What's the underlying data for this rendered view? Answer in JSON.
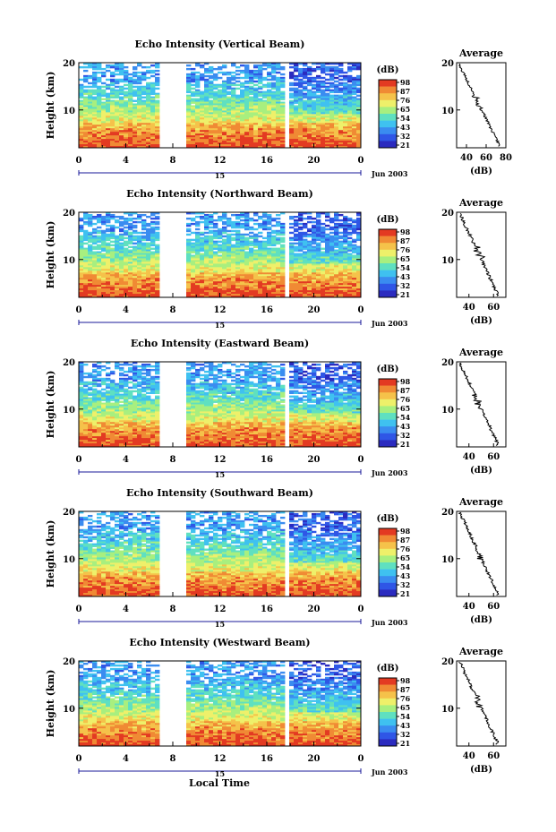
{
  "chart_data": {
    "type": "heatmap",
    "panels": [
      {
        "title": "Echo Intensity (Vertical Beam)",
        "ylabel": "Height (km)",
        "xticks": [
          "0",
          "4",
          "8",
          "12",
          "16",
          "20",
          "0"
        ],
        "yticks": [
          "10",
          "20"
        ],
        "ylim": [
          2,
          20
        ],
        "xlim": [
          0,
          24
        ],
        "day_label": "15",
        "date_label": "Jun 2003",
        "colorbar": {
          "unit": "(dB)",
          "labels": [
            "98",
            "87",
            "76",
            "65",
            "54",
            "43",
            "32",
            "21"
          ]
        },
        "profile": {
          "title": "Average",
          "xlabel": "(dB)",
          "xticks": [
            "40",
            "60",
            "80"
          ],
          "yticks": [
            "10",
            "20"
          ],
          "xlim": [
            30,
            80
          ],
          "ylim": [
            2,
            20
          ]
        }
      },
      {
        "title": "Echo Intensity (Northward Beam)",
        "ylabel": "Height (km)",
        "xticks": [
          "0",
          "4",
          "8",
          "12",
          "16",
          "20",
          "0"
        ],
        "yticks": [
          "10",
          "20"
        ],
        "ylim": [
          2,
          20
        ],
        "xlim": [
          0,
          24
        ],
        "day_label": "15",
        "date_label": "Jun 2003",
        "colorbar": {
          "unit": "(dB)",
          "labels": [
            "98",
            "87",
            "76",
            "65",
            "54",
            "43",
            "32",
            "21"
          ]
        },
        "profile": {
          "title": "Average",
          "xlabel": "(dB)",
          "xticks": [
            "40",
            "60"
          ],
          "yticks": [
            "10",
            "20"
          ],
          "xlim": [
            30,
            70
          ],
          "ylim": [
            2,
            20
          ]
        }
      },
      {
        "title": "Echo Intensity (Eastward Beam)",
        "ylabel": "Height (km)",
        "xticks": [
          "0",
          "4",
          "8",
          "12",
          "16",
          "20",
          "0"
        ],
        "yticks": [
          "10",
          "20"
        ],
        "ylim": [
          2,
          20
        ],
        "xlim": [
          0,
          24
        ],
        "day_label": "15",
        "date_label": "Jun 2003",
        "colorbar": {
          "unit": "(dB)",
          "labels": [
            "98",
            "87",
            "76",
            "65",
            "54",
            "43",
            "32",
            "21"
          ]
        },
        "profile": {
          "title": "Average",
          "xlabel": "(dB)",
          "xticks": [
            "40",
            "60"
          ],
          "yticks": [
            "10",
            "20"
          ],
          "xlim": [
            30,
            70
          ],
          "ylim": [
            2,
            20
          ]
        }
      },
      {
        "title": "Echo Intensity (Southward Beam)",
        "ylabel": "Height (km)",
        "xticks": [
          "0",
          "4",
          "8",
          "12",
          "16",
          "20",
          "0"
        ],
        "yticks": [
          "10",
          "20"
        ],
        "ylim": [
          2,
          20
        ],
        "xlim": [
          0,
          24
        ],
        "day_label": "15",
        "date_label": "Jun 2003",
        "colorbar": {
          "unit": "(dB)",
          "labels": [
            "98",
            "87",
            "76",
            "65",
            "54",
            "43",
            "32",
            "21"
          ]
        },
        "profile": {
          "title": "Average",
          "xlabel": "(dB)",
          "xticks": [
            "40",
            "60"
          ],
          "yticks": [
            "10",
            "20"
          ],
          "xlim": [
            30,
            70
          ],
          "ylim": [
            2,
            20
          ]
        }
      },
      {
        "title": "Echo Intensity (Westward Beam)",
        "ylabel": "Height (km)",
        "xticks": [
          "0",
          "4",
          "8",
          "12",
          "16",
          "20",
          "0"
        ],
        "yticks": [
          "10",
          "20"
        ],
        "ylim": [
          2,
          20
        ],
        "xlim": [
          0,
          24
        ],
        "day_label": "15",
        "date_label": "Jun 2003",
        "colorbar": {
          "unit": "(dB)",
          "labels": [
            "98",
            "87",
            "76",
            "65",
            "54",
            "43",
            "32",
            "21"
          ]
        },
        "profile": {
          "title": "Average",
          "xlabel": "(dB)",
          "xticks": [
            "40",
            "60"
          ],
          "yticks": [
            "10",
            "20"
          ],
          "xlim": [
            30,
            70
          ],
          "ylim": [
            2,
            20
          ]
        }
      }
    ],
    "xlabel": "Local Time",
    "data_gaps_hours": [
      [
        7,
        9
      ],
      [
        17.7,
        17.9
      ]
    ],
    "colormap": [
      "#2b2bbf",
      "#2f56e6",
      "#3a8cf0",
      "#3fc1f0",
      "#5fe0c0",
      "#a8ef7f",
      "#eef06a",
      "#f5c24a",
      "#f08a34",
      "#e33a22"
    ]
  }
}
